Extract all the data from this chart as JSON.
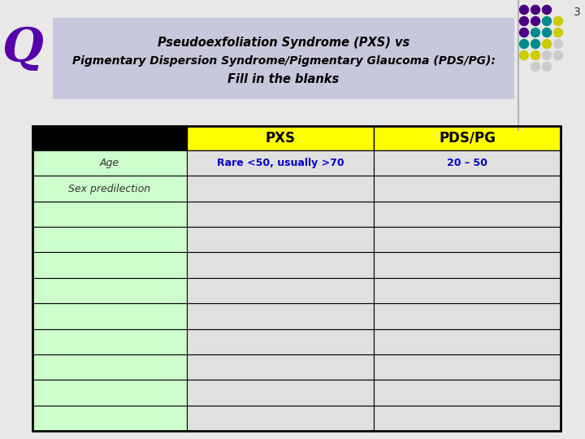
{
  "title_line1": "Pseudoexfoliation Syndrome (PXS) vs",
  "title_line2": "Pigmentary Dispersion Syndrome/Pigmentary Glaucoma (PDS/PG):",
  "title_line3": "Fill in the blanks",
  "title_bg": "#c8c8dc",
  "q_label": "Q",
  "q_color": "#5500aa",
  "slide_number": "3",
  "header_bg": "#ffff00",
  "row_labels": [
    "Age",
    "Sex predilection",
    "",
    "",
    "",
    "",
    "",
    "",
    "",
    "",
    ""
  ],
  "row_label_bg_green": "#ccffcc",
  "col1_data": [
    "Rare <50, usually >70",
    "",
    "",
    "",
    "",
    "",
    "",
    "",
    "",
    "",
    ""
  ],
  "col2_data": [
    "20 – 50",
    "",
    "",
    "",
    "",
    "",
    "",
    "",
    "",
    "",
    ""
  ],
  "col1_text_color": "#0000cc",
  "col2_text_color": "#0000cc",
  "col_data_bg": "#e0e0e0",
  "num_data_rows": 11,
  "bg_color": "#e8e8e8",
  "slide_bg": "#e8e8e8"
}
